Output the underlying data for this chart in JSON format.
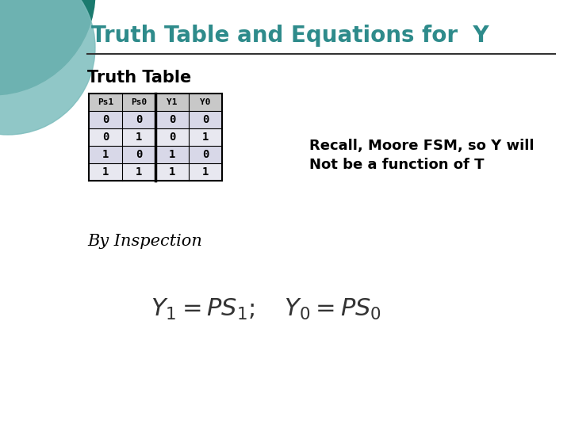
{
  "title": "Truth Table and Equations for  Y",
  "title_color": "#2E8B8B",
  "title_fontsize": 20,
  "bg_color": "#FFFFFF",
  "truth_table_label": "Truth Table",
  "by_inspection_label": "By Inspection",
  "recall_text_line1": "Recall, Moore FSM, so Y will",
  "recall_text_line2": "Not be a function of T",
  "table_headers": [
    "Ps1",
    "Ps0",
    "Y1",
    "Y0"
  ],
  "table_data": [
    [
      "0",
      "0",
      "0",
      "0"
    ],
    [
      "0",
      "1",
      "0",
      "1"
    ],
    [
      "1",
      "0",
      "1",
      "0"
    ],
    [
      "1",
      "1",
      "1",
      "1"
    ]
  ],
  "corner_circle_color1": "#1A7A6E",
  "corner_circle_color2": "#7DBDBD",
  "equation_fontsize": 22
}
